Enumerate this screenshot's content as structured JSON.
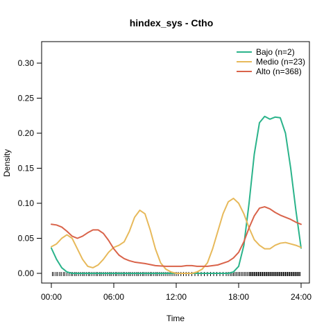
{
  "chart_data": {
    "type": "line",
    "title": "hindex_sys - Ctho",
    "xlabel": "Time",
    "ylabel": "Density",
    "xlim": [
      0,
      24
    ],
    "ylim": [
      0,
      0.32
    ],
    "x_ticks": [
      0,
      6,
      12,
      18,
      24
    ],
    "x_tick_labels": [
      "00:00",
      "06:00",
      "12:00",
      "18:00",
      "24:00"
    ],
    "y_ticks": [
      0.0,
      0.05,
      0.1,
      0.15,
      0.2,
      0.25,
      0.3
    ],
    "y_tick_labels": [
      "0.00",
      "0.05",
      "0.10",
      "0.15",
      "0.20",
      "0.25",
      "0.30"
    ],
    "legend_position": "top-right",
    "series": [
      {
        "name": "Bajo (n=2)",
        "color": "#2ab38a",
        "x": [
          0,
          0.5,
          1,
          1.5,
          2,
          3,
          4,
          6,
          8,
          10,
          12,
          14,
          16,
          17,
          17.5,
          18,
          18.5,
          19,
          19.5,
          20,
          20.5,
          21,
          21.5,
          22,
          22.5,
          23,
          23.5,
          24
        ],
        "y": [
          0.036,
          0.02,
          0.008,
          0.002,
          0.0,
          0.0,
          0.0,
          0.0,
          0.0,
          0.0,
          0.0,
          0.0,
          0.0,
          0.0,
          0.002,
          0.01,
          0.04,
          0.1,
          0.17,
          0.215,
          0.224,
          0.22,
          0.223,
          0.222,
          0.2,
          0.15,
          0.09,
          0.036
        ]
      },
      {
        "name": "Medio (n=23)",
        "color": "#e7b95a",
        "x": [
          0,
          0.5,
          1,
          1.5,
          2,
          2.5,
          3,
          3.5,
          4,
          4.5,
          5,
          5.5,
          6,
          6.5,
          7,
          7.5,
          8,
          8.5,
          9,
          9.5,
          10,
          10.5,
          11,
          11.5,
          12,
          12.5,
          13,
          13.5,
          14,
          14.5,
          15,
          15.5,
          16,
          16.5,
          17,
          17.5,
          18,
          18.5,
          19,
          19.5,
          20,
          20.5,
          21,
          21.5,
          22,
          22.5,
          23,
          23.5,
          24
        ],
        "y": [
          0.038,
          0.042,
          0.05,
          0.055,
          0.05,
          0.035,
          0.02,
          0.01,
          0.008,
          0.012,
          0.02,
          0.03,
          0.037,
          0.04,
          0.045,
          0.06,
          0.08,
          0.09,
          0.085,
          0.062,
          0.035,
          0.015,
          0.006,
          0.002,
          0.0,
          0.0,
          0.0,
          0.0,
          0.002,
          0.006,
          0.015,
          0.035,
          0.06,
          0.085,
          0.102,
          0.107,
          0.1,
          0.085,
          0.065,
          0.048,
          0.04,
          0.035,
          0.035,
          0.04,
          0.043,
          0.044,
          0.042,
          0.04,
          0.037
        ]
      },
      {
        "name": "Alto (n=368)",
        "color": "#d9634a",
        "x": [
          0,
          0.5,
          1,
          1.5,
          2,
          2.5,
          3,
          3.5,
          4,
          4.5,
          5,
          5.5,
          6,
          6.5,
          7,
          7.5,
          8,
          9,
          10,
          11,
          12,
          12.5,
          13,
          13.5,
          14,
          14.5,
          15,
          16,
          17,
          17.5,
          18,
          18.5,
          19,
          19.5,
          20,
          20.5,
          21,
          21.5,
          22,
          22.5,
          23,
          23.5,
          24
        ],
        "y": [
          0.07,
          0.069,
          0.066,
          0.06,
          0.053,
          0.05,
          0.053,
          0.058,
          0.062,
          0.062,
          0.057,
          0.047,
          0.035,
          0.026,
          0.021,
          0.018,
          0.016,
          0.014,
          0.011,
          0.01,
          0.01,
          0.01,
          0.011,
          0.011,
          0.01,
          0.01,
          0.01,
          0.012,
          0.017,
          0.022,
          0.03,
          0.045,
          0.065,
          0.082,
          0.093,
          0.095,
          0.092,
          0.087,
          0.083,
          0.08,
          0.077,
          0.073,
          0.07
        ]
      }
    ],
    "rug_positions": [
      0.1,
      0.25,
      0.45,
      0.6,
      0.8,
      0.95,
      1.15,
      1.3,
      1.5,
      1.7,
      1.9,
      2.05,
      2.25,
      2.4,
      2.6,
      2.8,
      3.0,
      3.15,
      3.35,
      3.55,
      3.7,
      3.9,
      4.1,
      4.3,
      4.45,
      4.65,
      4.8,
      5.0,
      5.2,
      5.4,
      5.6,
      5.75,
      5.95,
      6.15,
      6.3,
      6.5,
      6.7,
      6.9,
      7.05,
      7.25,
      7.45,
      7.6,
      7.8,
      8.0,
      8.2,
      8.35,
      8.55,
      8.75,
      8.9,
      9.1,
      9.3,
      9.5,
      9.65,
      9.85,
      10.05,
      10.2,
      10.4,
      10.6,
      10.8,
      11.0,
      11.2,
      11.4,
      11.6,
      11.8,
      12.0,
      12.2,
      12.45,
      12.7,
      12.95,
      13.2,
      13.5,
      13.8,
      14.1,
      14.4,
      14.7,
      15.0,
      15.3,
      15.6,
      15.9,
      16.2,
      16.5,
      16.8,
      17.0,
      17.2,
      17.35,
      17.5,
      17.65,
      17.8,
      17.95,
      18.1,
      18.25,
      18.4,
      18.55,
      18.7,
      18.85,
      19.0,
      19.1,
      19.2,
      19.3,
      19.4,
      19.5,
      19.6,
      19.7,
      19.8,
      19.9,
      20.0,
      20.1,
      20.2,
      20.3,
      20.4,
      20.5,
      20.6,
      20.7,
      20.8,
      20.9,
      21.0,
      21.1,
      21.2,
      21.3,
      21.4,
      21.5,
      21.6,
      21.7,
      21.8,
      21.9,
      22.0,
      22.1,
      22.2,
      22.3,
      22.4,
      22.5,
      22.6,
      22.7,
      22.8,
      22.9,
      23.0,
      23.1,
      23.2,
      23.3,
      23.4,
      23.5,
      23.6,
      23.7,
      23.8,
      23.9
    ],
    "rug_color": "#000000"
  }
}
